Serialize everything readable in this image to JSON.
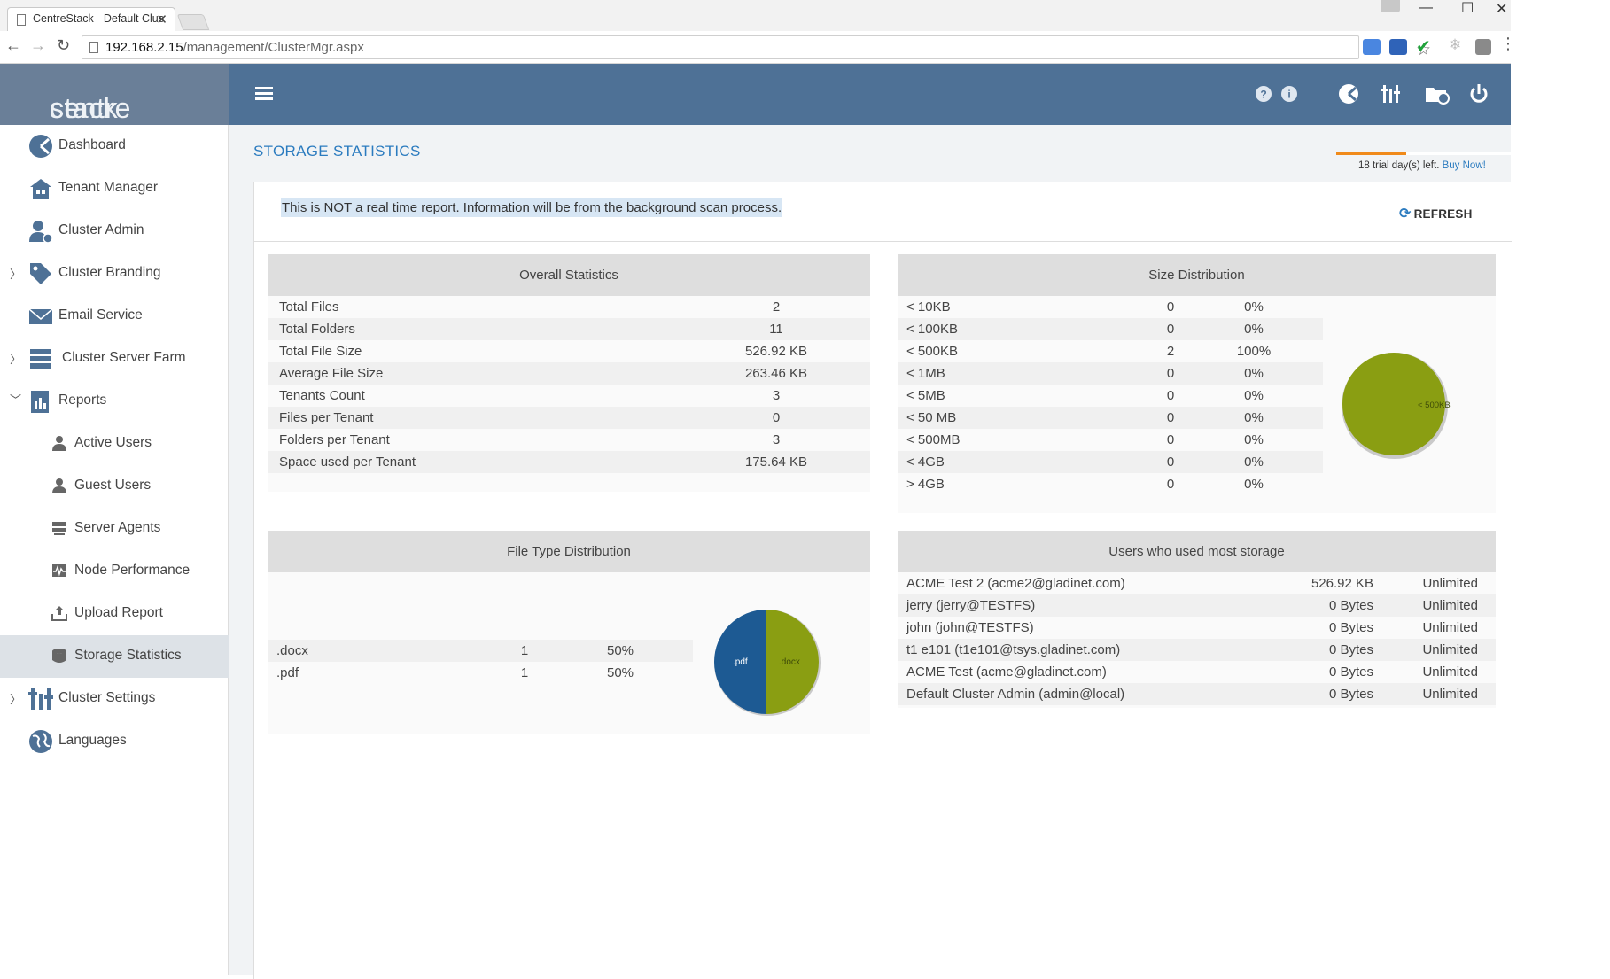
{
  "browser": {
    "tab_title": "CentreStack - Default Clus",
    "url_host": "192.168.2.15",
    "url_path": "/management/ClusterMgr.aspx"
  },
  "app": {
    "logo_a": "centre",
    "logo_b": "stack"
  },
  "sidebar": {
    "items": [
      {
        "label": "Dashboard"
      },
      {
        "label": "Tenant Manager"
      },
      {
        "label": "Cluster Admin"
      },
      {
        "label": "Cluster Branding"
      },
      {
        "label": "Email Service"
      },
      {
        "label": "Cluster Server Farm"
      },
      {
        "label": "Reports"
      },
      {
        "label": "Active Users"
      },
      {
        "label": "Guest Users"
      },
      {
        "label": "Server Agents"
      },
      {
        "label": "Node Performance"
      },
      {
        "label": "Upload Report"
      },
      {
        "label": "Storage Statistics"
      },
      {
        "label": "Cluster Settings"
      },
      {
        "label": "Languages"
      }
    ]
  },
  "page": {
    "title": "STORAGE STATISTICS",
    "trial_text": "18 trial day(s) left.",
    "buy_now": "Buy Now!",
    "trial_fraction": 0.4,
    "note": "This is NOT a real time report. Information will be from the background scan process.",
    "refresh_label": "REFRESH"
  },
  "overall": {
    "title": "Overall Statistics",
    "rows": [
      {
        "label": "Total Files",
        "value": "2"
      },
      {
        "label": "Total Folders",
        "value": "11"
      },
      {
        "label": "Total File Size",
        "value": "526.92 KB"
      },
      {
        "label": "Average File Size",
        "value": "263.46 KB"
      },
      {
        "label": "Tenants Count",
        "value": "3"
      },
      {
        "label": "Files per Tenant",
        "value": "0"
      },
      {
        "label": "Folders per Tenant",
        "value": "3"
      },
      {
        "label": "Space used per Tenant",
        "value": "175.64 KB"
      }
    ]
  },
  "size_dist": {
    "title": "Size Distribution",
    "rows": [
      {
        "label": "< 10KB",
        "count": "0",
        "pct": "0%"
      },
      {
        "label": "< 100KB",
        "count": "0",
        "pct": "0%"
      },
      {
        "label": "< 500KB",
        "count": "2",
        "pct": "100%"
      },
      {
        "label": "< 1MB",
        "count": "0",
        "pct": "0%"
      },
      {
        "label": "< 5MB",
        "count": "0",
        "pct": "0%"
      },
      {
        "label": "< 50 MB",
        "count": "0",
        "pct": "0%"
      },
      {
        "label": "< 500MB",
        "count": "0",
        "pct": "0%"
      },
      {
        "label": "< 4GB",
        "count": "0",
        "pct": "0%"
      },
      {
        "label": "> 4GB",
        "count": "0",
        "pct": "0%"
      }
    ],
    "pie_label": "< 500KB"
  },
  "file_type": {
    "title": "File Type Distribution",
    "rows": [
      {
        "label": ".docx",
        "count": "1",
        "pct": "50%"
      },
      {
        "label": ".pdf",
        "count": "1",
        "pct": "50%"
      }
    ],
    "pie_labels": [
      ".pdf",
      ".docx"
    ]
  },
  "users": {
    "title": "Users who used most storage",
    "rows": [
      {
        "name": "ACME Test 2 (acme2@gladinet.com)",
        "used": "526.92 KB",
        "quota": "Unlimited"
      },
      {
        "name": "jerry (jerry@TESTFS)",
        "used": "0 Bytes",
        "quota": "Unlimited"
      },
      {
        "name": "john (john@TESTFS)",
        "used": "0 Bytes",
        "quota": "Unlimited"
      },
      {
        "name": "t1 e101 (t1e101@tsys.gladinet.com)",
        "used": "0 Bytes",
        "quota": "Unlimited"
      },
      {
        "name": "ACME Test (acme@gladinet.com)",
        "used": "0 Bytes",
        "quota": "Unlimited"
      },
      {
        "name": "Default Cluster Admin (admin@local)",
        "used": "0 Bytes",
        "quota": "Unlimited"
      }
    ]
  },
  "colors": {
    "header": "#4e7196",
    "brand": "#6a7f98",
    "accent": "#2b7bbf",
    "pie_green": "#8a9e12",
    "pie_blue": "#1d5a93"
  }
}
